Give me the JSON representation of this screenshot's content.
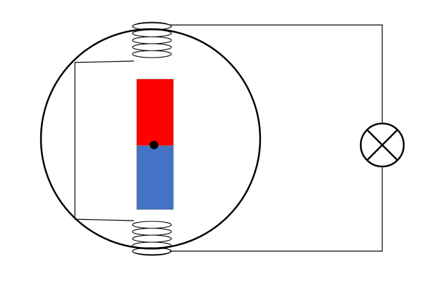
{
  "diagram": {
    "type": "generator-circuit",
    "components": {
      "stator_ring": "circle",
      "magnet": {
        "north_color": "#ff0000",
        "south_color": "#4472c4",
        "pivot_color": "#000000"
      },
      "coils": [
        "top-coil",
        "bottom-coil"
      ],
      "lamp": "lamp-symbol"
    },
    "colors": {
      "line": "#000000",
      "background": "#ffffff"
    }
  }
}
